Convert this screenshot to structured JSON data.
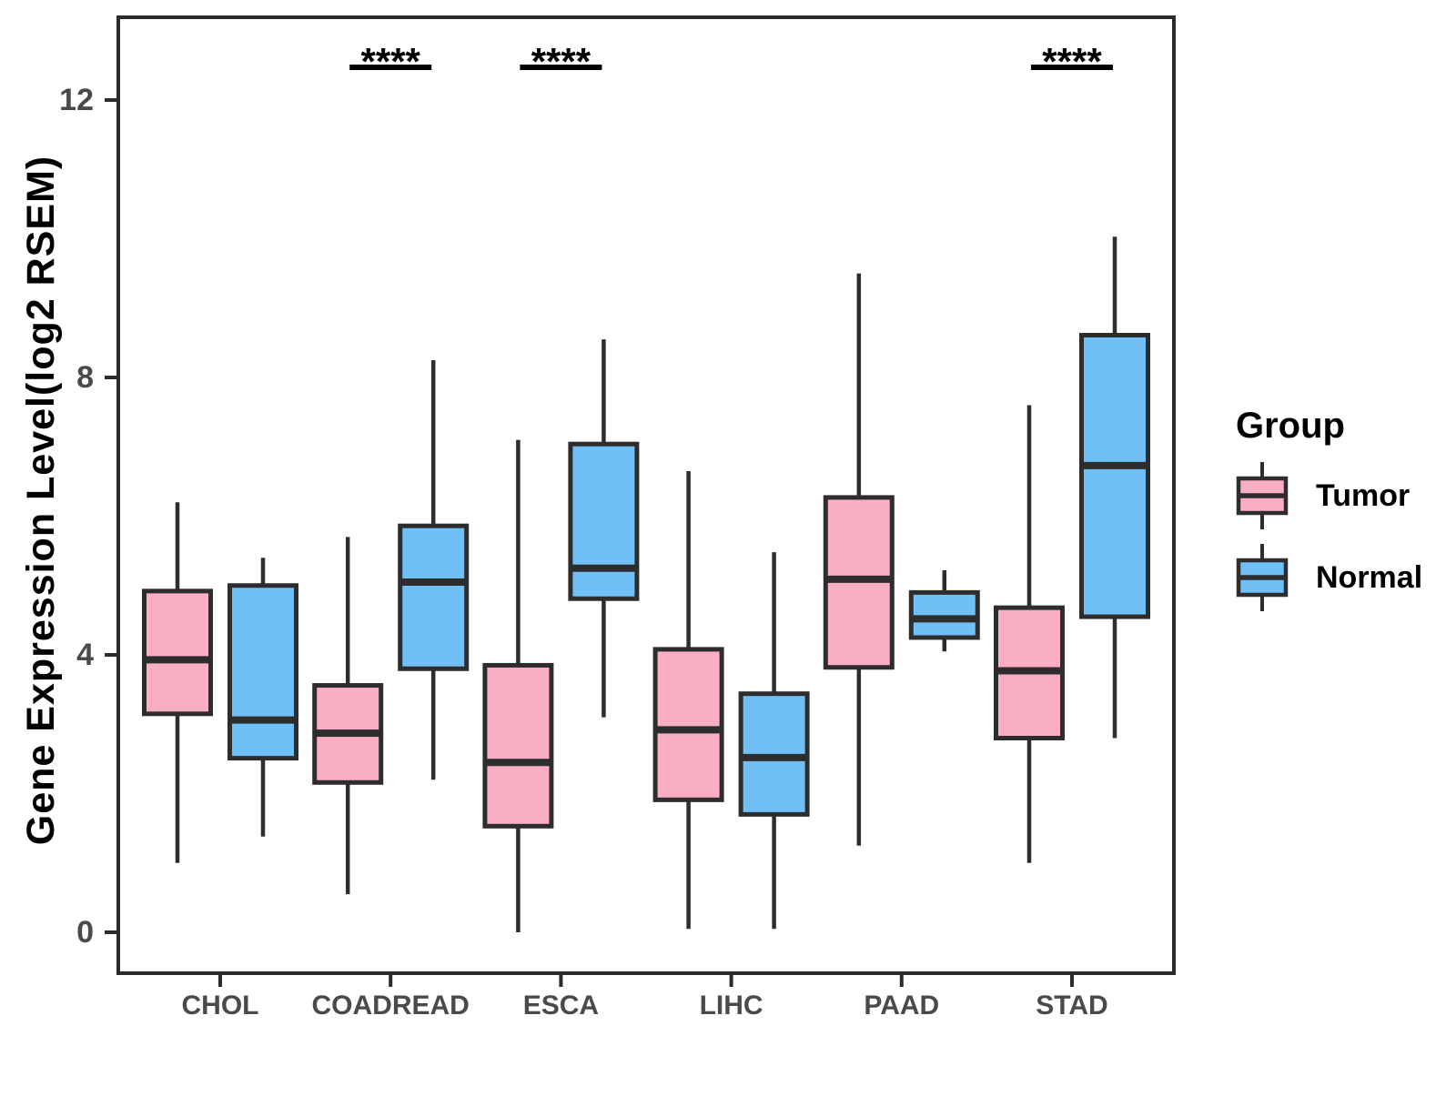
{
  "figure": {
    "legend": {
      "title": "Group",
      "items": [
        {
          "label": "Tumor",
          "color": "#FAAEC3"
        },
        {
          "label": "Normal",
          "color": "#70BFF6"
        }
      ]
    }
  },
  "chart_data": {
    "type": "boxplot",
    "title": "",
    "xlabel": "",
    "ylabel": "Gene Expression Level(log2 RSEM)",
    "categories": [
      "CHOL",
      "COADREAD",
      "ESCA",
      "LIHC",
      "PAAD",
      "STAD"
    ],
    "yticks": [
      0,
      4,
      8,
      12
    ],
    "ylim": [
      -0.6,
      13.2
    ],
    "grid": false,
    "legend_position": "right",
    "series": [
      {
        "name": "Tumor",
        "color": "#FAAEC3",
        "stat_keys": [
          "whisker_low",
          "q1",
          "median",
          "q3",
          "whisker_high"
        ],
        "boxes": [
          [
            1.0,
            3.15,
            3.93,
            4.92,
            6.2
          ],
          [
            0.55,
            2.16,
            2.87,
            3.56,
            5.7
          ],
          [
            0.0,
            1.53,
            2.45,
            3.85,
            7.1
          ],
          [
            0.05,
            1.91,
            2.92,
            4.08,
            6.65
          ],
          [
            1.25,
            3.82,
            5.09,
            6.27,
            9.5
          ],
          [
            1.0,
            2.8,
            3.77,
            4.68,
            7.6
          ]
        ]
      },
      {
        "name": "Normal",
        "color": "#70BFF6",
        "stat_keys": [
          "whisker_low",
          "q1",
          "median",
          "q3",
          "whisker_high"
        ],
        "boxes": [
          [
            1.38,
            2.51,
            3.06,
            5.0,
            5.4
          ],
          [
            2.2,
            3.8,
            5.05,
            5.86,
            8.25
          ],
          [
            3.1,
            4.81,
            5.25,
            7.04,
            8.55
          ],
          [
            0.05,
            1.7,
            2.52,
            3.44,
            5.48
          ],
          [
            4.05,
            4.25,
            4.52,
            4.9,
            5.22
          ],
          [
            2.8,
            4.55,
            6.73,
            8.61,
            10.03
          ]
        ]
      }
    ],
    "significance": [
      {
        "category": "COADREAD",
        "label": "****"
      },
      {
        "category": "ESCA",
        "label": "****"
      },
      {
        "category": "STAD",
        "label": "****"
      }
    ],
    "style_colors": {
      "box_stroke": "#2d2d2d",
      "panel_border": "#2b2b2b",
      "tick_label": "#4a4a4a",
      "annotation": "#000000"
    }
  }
}
